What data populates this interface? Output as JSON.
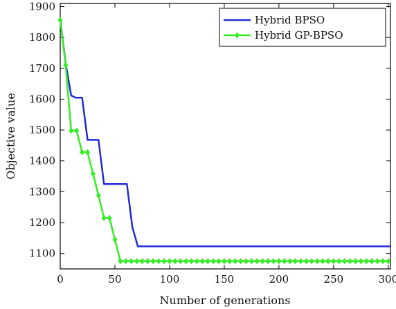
{
  "chart_data": {
    "type": "line",
    "title": "",
    "xlabel": "Number of generations",
    "ylabel": "Objective value",
    "xlim": [
      0,
      302
    ],
    "ylim": [
      1050,
      1910
    ],
    "xticks": [
      "0",
      "50",
      "100",
      "150",
      "200",
      "250",
      "300"
    ],
    "yticks": [
      "1100",
      "1200",
      "1300",
      "1400",
      "1500",
      "1600",
      "1700",
      "1800",
      "1900"
    ],
    "grid": false,
    "legend_position": "top-right",
    "series": [
      {
        "name": "Hybrid BPSO",
        "color": "#1f2bd6",
        "marker": "none",
        "points": [
          [
            0,
            1858
          ],
          [
            5,
            1715
          ],
          [
            10,
            1612
          ],
          [
            14,
            1605
          ],
          [
            20,
            1605
          ],
          [
            25,
            1468
          ],
          [
            35,
            1468
          ],
          [
            40,
            1325
          ],
          [
            61,
            1325
          ],
          [
            66,
            1185
          ],
          [
            71,
            1123
          ],
          [
            302,
            1123
          ]
        ]
      },
      {
        "name": "Hybrid GP-BPSO",
        "color": "#33ee22",
        "marker": "diamond",
        "points": [
          [
            0,
            1856
          ],
          [
            5,
            1710
          ],
          [
            10,
            1498
          ],
          [
            15,
            1498
          ],
          [
            20,
            1428
          ],
          [
            25,
            1428
          ],
          [
            30,
            1358
          ],
          [
            35,
            1288
          ],
          [
            40,
            1215
          ],
          [
            45,
            1215
          ],
          [
            50,
            1145
          ],
          [
            55,
            1075
          ],
          [
            60,
            1075
          ],
          [
            65,
            1075
          ],
          [
            70,
            1075
          ],
          [
            75,
            1075
          ],
          [
            80,
            1075
          ],
          [
            85,
            1075
          ],
          [
            90,
            1075
          ],
          [
            95,
            1075
          ],
          [
            100,
            1075
          ],
          [
            105,
            1075
          ],
          [
            110,
            1075
          ],
          [
            115,
            1075
          ],
          [
            120,
            1075
          ],
          [
            125,
            1075
          ],
          [
            130,
            1075
          ],
          [
            135,
            1075
          ],
          [
            140,
            1075
          ],
          [
            145,
            1075
          ],
          [
            150,
            1075
          ],
          [
            155,
            1075
          ],
          [
            160,
            1075
          ],
          [
            165,
            1075
          ],
          [
            170,
            1075
          ],
          [
            175,
            1075
          ],
          [
            180,
            1075
          ],
          [
            185,
            1075
          ],
          [
            190,
            1075
          ],
          [
            195,
            1075
          ],
          [
            200,
            1075
          ],
          [
            205,
            1075
          ],
          [
            210,
            1075
          ],
          [
            215,
            1075
          ],
          [
            220,
            1075
          ],
          [
            225,
            1075
          ],
          [
            230,
            1075
          ],
          [
            235,
            1075
          ],
          [
            240,
            1075
          ],
          [
            245,
            1075
          ],
          [
            250,
            1075
          ],
          [
            255,
            1075
          ],
          [
            260,
            1075
          ],
          [
            265,
            1075
          ],
          [
            270,
            1075
          ],
          [
            275,
            1075
          ],
          [
            280,
            1075
          ],
          [
            285,
            1075
          ],
          [
            290,
            1075
          ],
          [
            295,
            1075
          ],
          [
            300,
            1075
          ]
        ]
      }
    ]
  }
}
